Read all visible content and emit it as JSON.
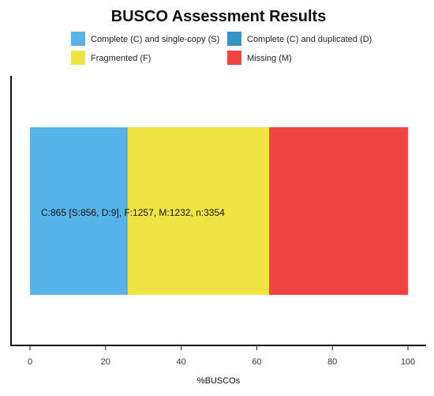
{
  "chart_data": {
    "type": "bar",
    "orientation": "horizontal",
    "stacked": true,
    "title": "BUSCO Assessment Results",
    "xlabel": "%BUSCOs",
    "ylabel": "",
    "xlim": [
      0,
      100
    ],
    "x_ticks": [
      "0",
      "20",
      "40",
      "60",
      "80",
      "100"
    ],
    "grid": false,
    "legend_position": "top",
    "categories": [
      ""
    ],
    "series": [
      {
        "name": "Complete (C) and single-copy (S)",
        "values": [
          25.52
        ],
        "color": "#56b4e9"
      },
      {
        "name": "Complete (C) and duplicated (D)",
        "values": [
          0.27
        ],
        "color": "#3492c7"
      },
      {
        "name": "Fragmented (F)",
        "values": [
          37.48
        ],
        "color": "#f0e442"
      },
      {
        "name": "Missing (M)",
        "values": [
          36.73
        ],
        "color": "#f04442"
      }
    ],
    "annotation": "C:865 [S:856, D:9], F:1257, M:1232, n:3354"
  }
}
